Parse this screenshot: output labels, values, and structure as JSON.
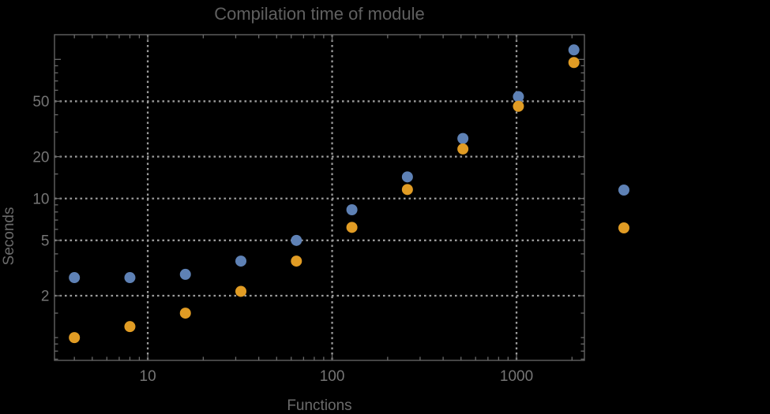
{
  "chart": {
    "title": "Compilation time of module",
    "xlabel": "Functions",
    "ylabel": "Seconds"
  },
  "colors": {
    "background": "#000000",
    "frame": "#6a6a6a",
    "grid": "#9b9b9b",
    "title_text": "#606060",
    "axis_label_text": "#6b6b6b",
    "tick_label_text": "#757575",
    "series_blue": "#5e81b5",
    "series_orange": "#e19c24"
  },
  "chart_data": {
    "type": "scatter",
    "scale": "log-log",
    "title": "Compilation time of module",
    "xlabel": "Functions",
    "ylabel": "Seconds",
    "x": [
      4,
      8,
      16,
      32,
      64,
      128,
      256,
      512,
      1024,
      2048
    ],
    "series": [
      {
        "name": "blue",
        "color": "#5e81b5",
        "values": [
          2.7,
          2.7,
          2.85,
          3.55,
          5.0,
          8.3,
          14.3,
          27,
          54,
          117
        ]
      },
      {
        "name": "orange",
        "color": "#e19c24",
        "values": [
          1.0,
          1.2,
          1.5,
          2.15,
          3.55,
          6.2,
          11.6,
          22.7,
          46,
          95
        ]
      }
    ],
    "xlim": [
      3.12,
      2335
    ],
    "ylim": [
      0.686,
      150.5
    ],
    "grid": true,
    "grid_x": [
      10,
      100,
      1000
    ],
    "grid_y": [
      2,
      5,
      10,
      20,
      50
    ],
    "x_ticks_major": [
      10,
      100,
      1000
    ],
    "x_tick_labels": [
      "10",
      "100",
      "1000"
    ],
    "x_ticks_minor": [
      4,
      5,
      6,
      7,
      8,
      9,
      20,
      30,
      40,
      50,
      60,
      70,
      80,
      90,
      200,
      300,
      400,
      500,
      600,
      700,
      800,
      900,
      2000
    ],
    "y_ticks_major": [
      2,
      5,
      10,
      20,
      50,
      100
    ],
    "y_ticks_labeled": [
      2,
      5,
      10,
      20,
      50
    ],
    "y_tick_labels": [
      "2",
      "5",
      "10",
      "20",
      "50"
    ],
    "y_ticks_minor": [
      0.7,
      0.8,
      0.9,
      1,
      1.5,
      3,
      4,
      6,
      7,
      8,
      9,
      15,
      30,
      40,
      60,
      70,
      80,
      90
    ],
    "legend_position": "right",
    "legend_markers": [
      {
        "name": "blue",
        "color": "#5e81b5"
      },
      {
        "name": "orange",
        "color": "#e19c24"
      }
    ]
  }
}
